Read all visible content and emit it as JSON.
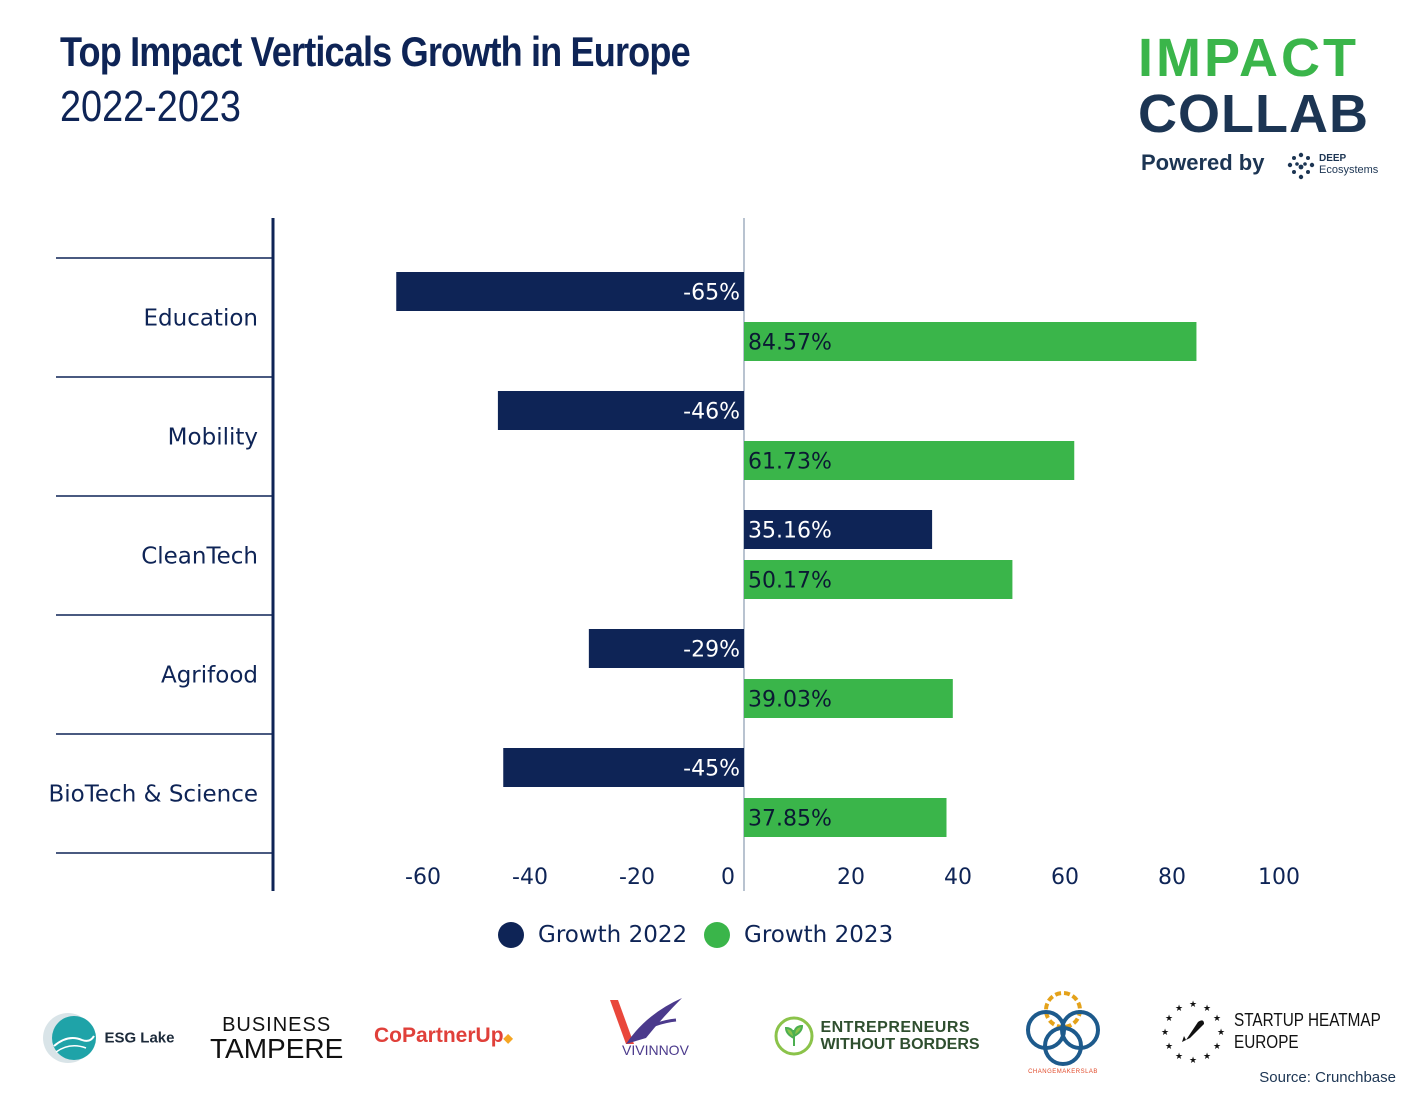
{
  "title": "Top Impact Verticals Growth in Europe",
  "subtitle": "2022-2023",
  "brand": {
    "line1": "IMPACT",
    "line2": "COLLAB",
    "powered_by": "Powered by",
    "partner_line1": "DEEP",
    "partner_line2": "Ecosystems"
  },
  "colors": {
    "growth_2022": "#0e2456",
    "growth_2023": "#3ab54a",
    "axis": "#0e2456"
  },
  "chart_data": {
    "type": "bar",
    "orientation": "horizontal",
    "categories": [
      "Education",
      "Mobility",
      "CleanTech",
      "Agrifood",
      "BioTech & Science"
    ],
    "series": [
      {
        "name": "Growth 2022",
        "values": [
          -65,
          -46,
          35.16,
          -29,
          -45
        ],
        "labels": [
          "-65%",
          "-46%",
          "35.16%",
          "-29%",
          "-45%"
        ]
      },
      {
        "name": "Growth 2023",
        "values": [
          84.57,
          61.73,
          50.17,
          39.03,
          37.85
        ],
        "labels": [
          "84.57%",
          "61.73%",
          "50.17%",
          "39.03%",
          "37.85%"
        ]
      }
    ],
    "x_ticks": [
      -60,
      -40,
      -20,
      0,
      20,
      40,
      60,
      80,
      100
    ],
    "xlim": [
      -66,
      101
    ],
    "legend": "bottom-center"
  },
  "partners": [
    "ESG Lake",
    "BUSINESS",
    "TAMPERE",
    "CoPartnerUp",
    "VIVINNOV",
    "ENTREPRENEURS",
    "WITHOUT BORDERS",
    "CHANGEMAKERSLAB",
    "STARTUP HEATMAP",
    "EUROPE"
  ],
  "source": "Source: Crunchbase"
}
